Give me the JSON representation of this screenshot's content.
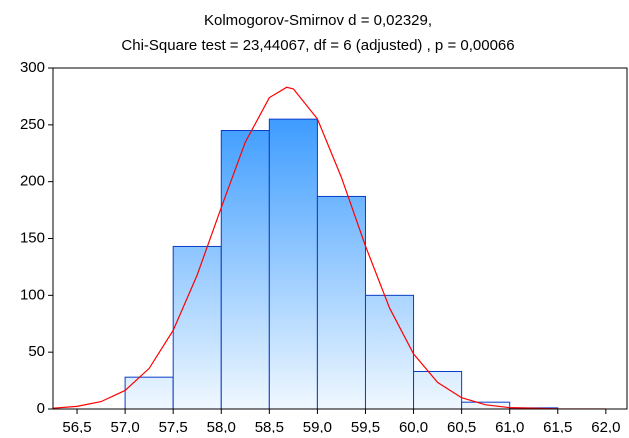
{
  "chart_data": {
    "type": "histogram",
    "title": [
      "Kolmogorov-Smirnov d = 0,02329,",
      "Chi-Square test = 23,44067, df = 6 (adjusted) , p = 0,00066"
    ],
    "bins": [
      56.5,
      57.0,
      57.5,
      58.0,
      58.5,
      59.0,
      59.5,
      60.0,
      60.5,
      61.0,
      61.5,
      62.0
    ],
    "counts": [
      0,
      28,
      143,
      245,
      255,
      187,
      100,
      33,
      6,
      1,
      0
    ],
    "color": "#1e8cff",
    "edgecolor": "#0a3cc8",
    "fit": {
      "color": "#ff0000",
      "x": [
        56.25,
        56.5,
        56.75,
        57.0,
        57.25,
        57.5,
        57.75,
        58.0,
        58.25,
        58.5,
        58.68,
        58.75,
        59.0,
        59.25,
        59.5,
        59.75,
        60.0,
        60.25,
        60.5,
        60.75,
        61.0,
        61.5,
        62.0
      ],
      "values": [
        0.7,
        2.3,
        6.5,
        16.3,
        35.7,
        69.2,
        118.0,
        177.2,
        234.7,
        273.9,
        283.0,
        281.6,
        255.2,
        203.7,
        143.4,
        88.9,
        48.5,
        23.4,
        9.9,
        3.7,
        1.2,
        0.1,
        0.0
      ]
    },
    "xlim": [
      56.25,
      62.22
    ],
    "ylim": [
      0,
      300
    ],
    "xticks": [
      {
        "value": 56.5,
        "label": "56,5"
      },
      {
        "value": 57.0,
        "label": "57,0"
      },
      {
        "value": 57.5,
        "label": "57,5"
      },
      {
        "value": 58.0,
        "label": "58,0"
      },
      {
        "value": 58.5,
        "label": "58,5"
      },
      {
        "value": 59.0,
        "label": "59,0"
      },
      {
        "value": 59.5,
        "label": "59,5"
      },
      {
        "value": 60.0,
        "label": "60,0"
      },
      {
        "value": 60.5,
        "label": "60,5"
      },
      {
        "value": 61.0,
        "label": "61,0"
      },
      {
        "value": 61.5,
        "label": "61,5"
      },
      {
        "value": 62.0,
        "label": "62,0"
      }
    ],
    "yticks": [
      0,
      50,
      100,
      150,
      200,
      250,
      300
    ]
  }
}
